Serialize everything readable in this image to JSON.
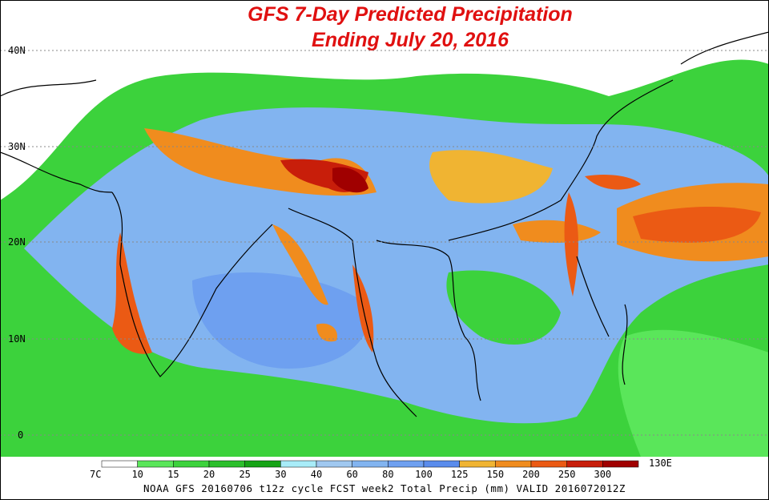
{
  "header": {
    "title": "GFS 7-Day Predicted Precipitation",
    "subtitle": "Ending July 20, 2016"
  },
  "lat_labels": [
    "40N",
    "30N",
    "20N",
    "10N",
    "0"
  ],
  "lon_labels": [
    "7C",
    "130E"
  ],
  "legend": {
    "labels": [
      10,
      15,
      20,
      25,
      30,
      40,
      60,
      80,
      100,
      125,
      150,
      200,
      250,
      300
    ],
    "colors": [
      "#ffffff",
      "#5ae65a",
      "#3cd23c",
      "#2cbf2c",
      "#16a416",
      "#a8ecf8",
      "#a0c8f0",
      "#82b4f0",
      "#6ea0f0",
      "#5a8cec",
      "#f0b432",
      "#f08c1e",
      "#eb5a14",
      "#c81e0a",
      "#a00000"
    ]
  },
  "footer": "NOAA GFS 20160706 t12z cycle FCST week2 Total Precip (mm)   VALID 2016072012Z"
}
